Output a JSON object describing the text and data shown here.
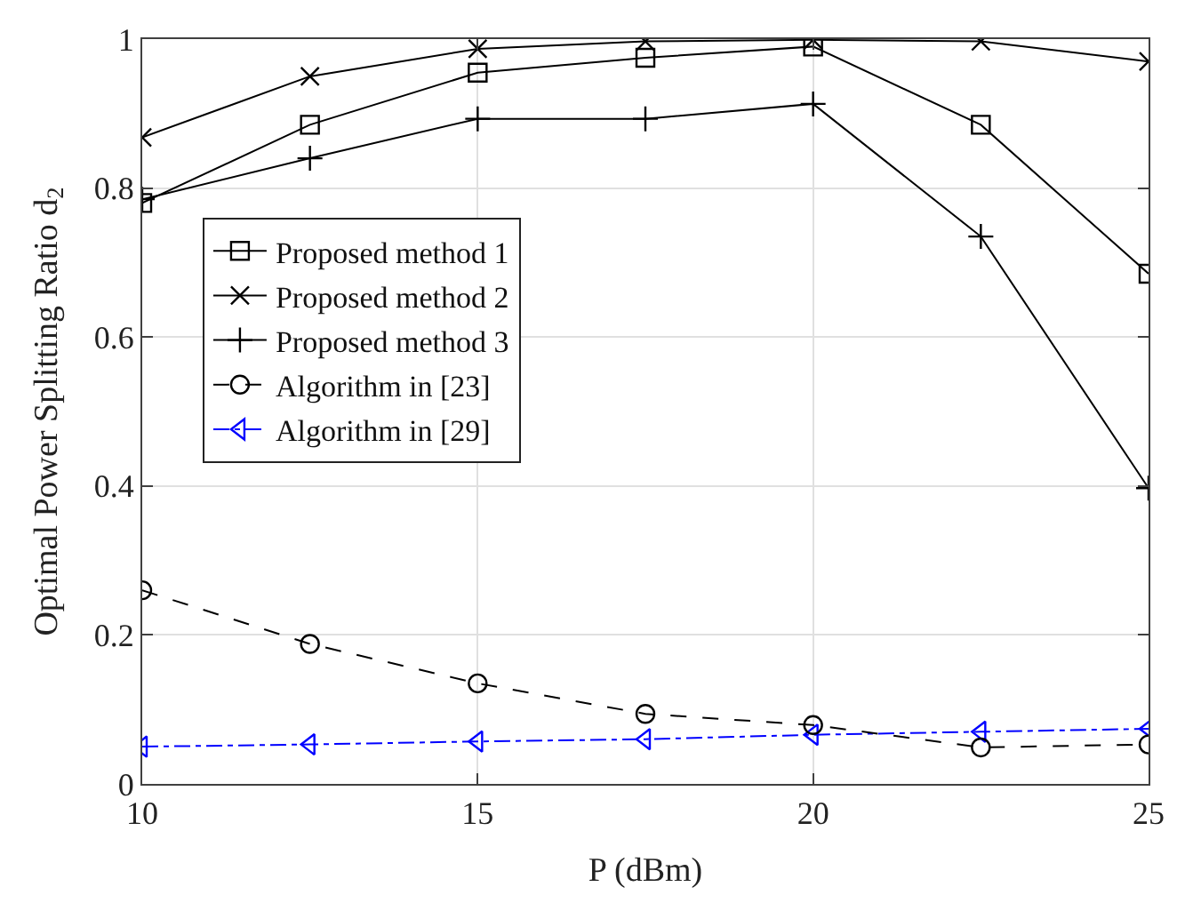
{
  "chart_data": {
    "type": "line",
    "xlabel": "P (dBm)",
    "ylabel": "Optimal Power Splitting Ratio d$_{2}$",
    "x": [
      10,
      12.5,
      15,
      17.5,
      20,
      22.5,
      25
    ],
    "xlim": [
      10,
      25
    ],
    "xticks": [
      10,
      15,
      20,
      25
    ],
    "ylim": [
      0,
      1
    ],
    "yticks": [
      0,
      0.2,
      0.4,
      0.6,
      0.8,
      1
    ],
    "grid": true,
    "legend": "left",
    "series": [
      {
        "name": "Proposed method 1",
        "color": "#000000",
        "marker": "square",
        "line_style": "solid",
        "values": [
          0.78,
          0.885,
          0.955,
          0.975,
          0.99,
          0.885,
          0.685
        ]
      },
      {
        "name": "Proposed method 2",
        "color": "#000000",
        "marker": "cross",
        "line_style": "solid",
        "values": [
          0.868,
          0.95,
          0.987,
          0.997,
          0.999,
          0.997,
          0.97
        ]
      },
      {
        "name": "Proposed method 3",
        "color": "#000000",
        "marker": "plus",
        "line_style": "solid",
        "values": [
          0.785,
          0.84,
          0.893,
          0.893,
          0.913,
          0.735,
          0.397
        ]
      },
      {
        "name": "Algorithm in [23]",
        "color": "#000000",
        "marker": "circle",
        "line_style": "dashed",
        "values": [
          0.26,
          0.188,
          0.135,
          0.094,
          0.079,
          0.049,
          0.053
        ]
      },
      {
        "name": "Algorithm in [29]",
        "color": "#0000ff",
        "marker": "triangle",
        "line_style": "dashdot",
        "values": [
          0.05,
          0.053,
          0.057,
          0.06,
          0.066,
          0.07,
          0.074
        ]
      }
    ]
  }
}
